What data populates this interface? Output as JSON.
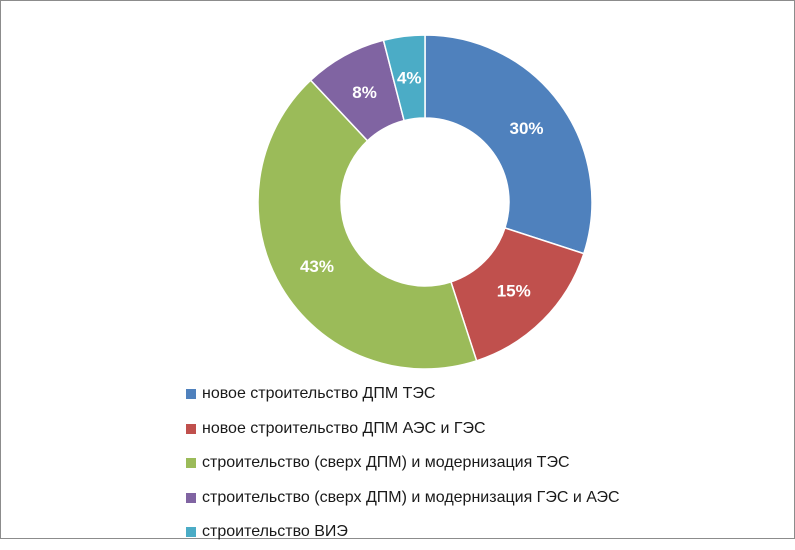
{
  "chart_data": {
    "type": "pie",
    "variant": "donut",
    "title": "",
    "slices": [
      {
        "label": "новое строительство ДПМ ТЭС",
        "value": 30,
        "display": "30%",
        "color": "#4f81bd"
      },
      {
        "label": "новое строительство ДПМ АЭС и ГЭС",
        "value": 15,
        "display": "15%",
        "color": "#c0504d"
      },
      {
        "label": "строительство (сверх ДПМ) и модернизация ТЭС",
        "value": 43,
        "display": "43%",
        "color": "#9bbb59"
      },
      {
        "label": "строительство (сверх ДПМ) и модернизация ГЭС и АЭС",
        "value": 8,
        "display": "8%",
        "color": "#8064a2"
      },
      {
        "label": "строительство ВИЭ",
        "value": 4,
        "display": "4%",
        "color": "#4bacc6"
      }
    ],
    "legend_position": "bottom",
    "start_angle": "12 o'clock",
    "direction": "clockwise"
  }
}
